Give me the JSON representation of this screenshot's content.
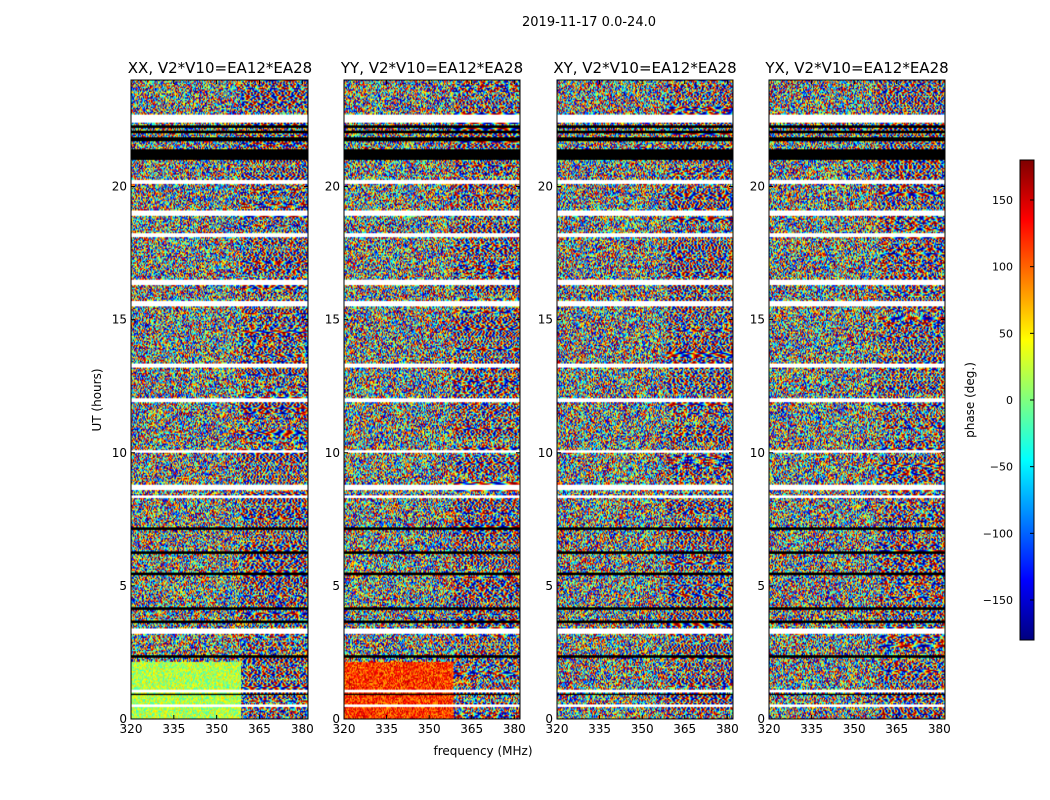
{
  "chart_data": {
    "type": "heatmap",
    "suptitle": "2019-11-17 0.0-24.0",
    "xlabel": "frequency (MHz)",
    "ylabel": "UT (hours)",
    "xlim": [
      320,
      382
    ],
    "ylim": [
      0,
      24
    ],
    "xticks": [
      "320",
      "335",
      "350",
      "365",
      "380"
    ],
    "yticks": [
      "0",
      "5",
      "10",
      "15",
      "20"
    ],
    "colorbar": {
      "label": "phase (deg.)",
      "range": [
        -180,
        180
      ],
      "ticks": [
        "150",
        "100",
        "50",
        "0",
        "−50",
        "−100",
        "−150"
      ],
      "tick_values": [
        150,
        100,
        50,
        0,
        -50,
        -100,
        -150
      ],
      "colormap": "jet",
      "stops": [
        "#00007f",
        "#0000ff",
        "#007fff",
        "#00ffff",
        "#7fff7f",
        "#ffff00",
        "#ff7f00",
        "#ff0000",
        "#7f0000"
      ]
    },
    "panels": [
      {
        "title": "XX, V2*V10=EA12*EA28"
      },
      {
        "title": "YY, V2*V10=EA12*EA28"
      },
      {
        "title": "XY, V2*V10=EA12*EA28"
      },
      {
        "title": "YX, V2*V10=EA12*EA28"
      }
    ]
  }
}
